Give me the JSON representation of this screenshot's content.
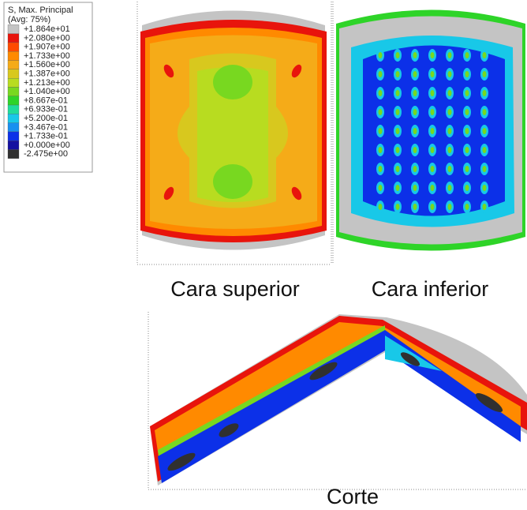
{
  "legend": {
    "title": "S, Max. Principal",
    "subtitle": "(Avg: 75%)",
    "labels": [
      "+1.864e+01",
      "+2.080e+00",
      "+1.907e+00",
      "+1.733e+00",
      "+1.560e+00",
      "+1.387e+00",
      "+1.213e+00",
      "+1.040e+00",
      "+8.667e-01",
      "+6.933e-01",
      "+5.200e-01",
      "+3.467e-01",
      "+1.733e-01",
      "+0.000e+00",
      "-2.475e+00"
    ],
    "colors": [
      "#c4c4c4",
      "#e8140c",
      "#ff4a00",
      "#ff8a00",
      "#f5ab18",
      "#d8c81e",
      "#b8dc20",
      "#78d820",
      "#2ed428",
      "#20dc9a",
      "#18c8e8",
      "#1890f0",
      "#0c30e8",
      "#1410a0",
      "#303030"
    ]
  },
  "captions": {
    "top": "Cara superior",
    "bottom": "Cara inferior",
    "section": "Corte"
  }
}
